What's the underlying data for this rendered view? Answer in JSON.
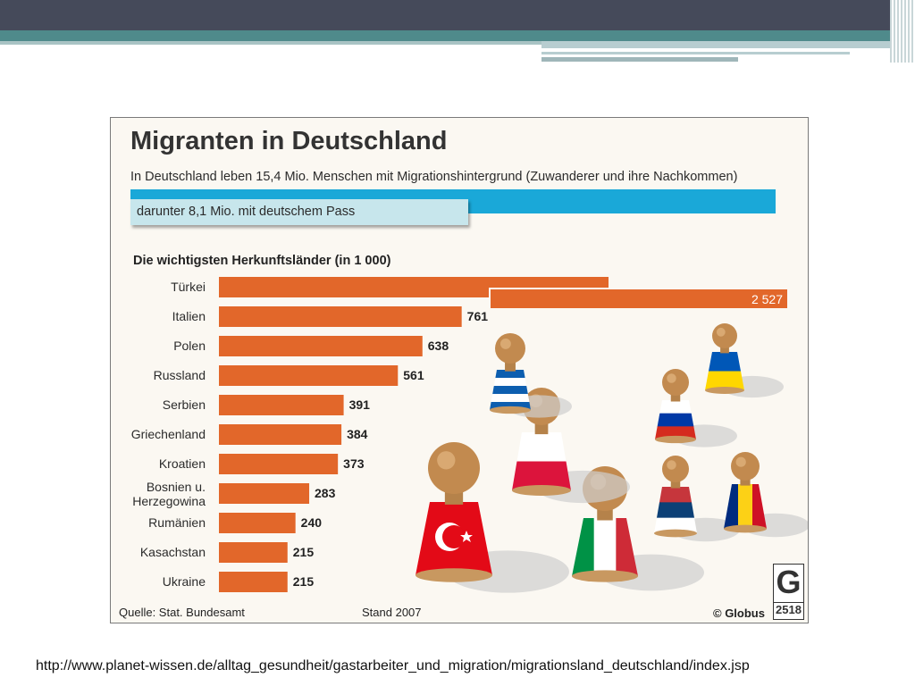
{
  "chart_data": {
    "type": "bar",
    "orientation": "horizontal",
    "title": "Migranten in Deutschland",
    "subtitle": "In Deutschland leben 15,4 Mio. Menschen mit Migrationshintergrund (Zuwanderer und ihre Nachkommen)",
    "pass_note": "darunter 8,1 Mio. mit deutschem Pass",
    "section_title": "Die wichtigsten Herkunftsländer (in 1 000)",
    "categories": [
      "Türkei",
      "Italien",
      "Polen",
      "Russland",
      "Serbien",
      "Griechenland",
      "Kroatien",
      "Bosnien u. Herzegowina",
      "Rumänien",
      "Kasachstan",
      "Ukraine"
    ],
    "value_labels": [
      "2 527",
      "761",
      "638",
      "561",
      "391",
      "384",
      "373",
      "283",
      "240",
      "215",
      "215"
    ],
    "values": [
      2527,
      761,
      638,
      561,
      391,
      384,
      373,
      283,
      240,
      215,
      215
    ],
    "totals": {
      "with_migration_background_mio": 15.4,
      "with_german_passport_mio": 8.1
    },
    "bar_color": "#e2672a",
    "accent_blue": "#1aa8d8",
    "legend": "none",
    "grid": false
  },
  "source": "Quelle: Stat. Bundesamt",
  "date": "Stand 2007",
  "publisher": "© Globus",
  "logo": {
    "letter": "G",
    "number": "2518"
  },
  "footer_url": "http://www.planet-wissen.de/alltag_gesundheit/gastarbeiter_und_migration/migrationsland_deutschland/index.jsp",
  "illustration": {
    "figures": [
      "turkey-flag-figure",
      "italy-flag-figure",
      "poland-flag-figure",
      "greece-flag-figure",
      "russia-flag-figure",
      "serbia-flag-figure",
      "ukraine-flag-figure",
      "romania-flag-figure"
    ]
  }
}
